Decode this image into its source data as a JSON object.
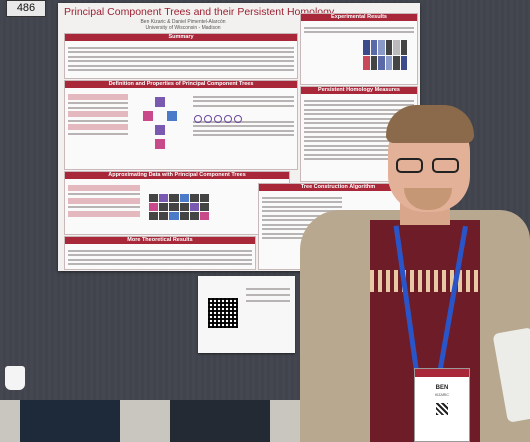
{
  "board_number": "486",
  "poster": {
    "title": "Principal Component Trees and their Persistent Homology",
    "authors": "Ben Kizaric & Daniel Pimentel-Alarcón",
    "affiliation": "University of Wisconsin - Madison",
    "sections": {
      "summary": "Summary",
      "definition": "Definition and Properties of Principal Component Trees",
      "approximating": "Approximating Data with Principal Component Trees",
      "theory": "More Theoretical Results",
      "experimental": "Experimental Results",
      "persistent": "Persistent Homology Measures",
      "construction": "Tree Construction Algorithm"
    }
  },
  "badge": {
    "name": "BEN",
    "surname": "KIZARIC"
  },
  "colors": {
    "accent": "#a8283a",
    "lanyard": "#2a55c8"
  }
}
